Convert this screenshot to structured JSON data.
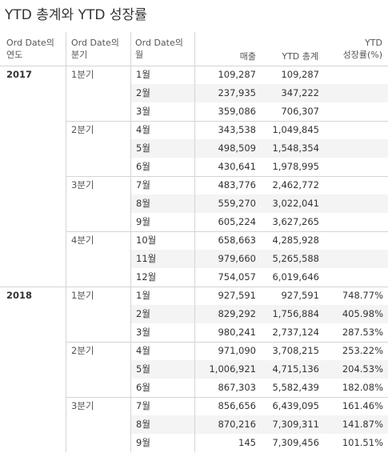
{
  "title": "YTD 총계와 YTD 성장률",
  "headers": {
    "year": [
      "Ord Date의",
      "연도"
    ],
    "quarter": [
      "Ord Date의",
      "분기"
    ],
    "month": [
      "Ord Date의",
      "월"
    ],
    "sales": "매출",
    "ytd_total": "YTD 총계",
    "ytd_growth": [
      "YTD",
      "성장률(%)"
    ]
  },
  "years": [
    {
      "year": "2017",
      "quarters": [
        {
          "label": "1분기",
          "rows": [
            {
              "month": "1월",
              "sales": "109,287",
              "ytd": "109,287",
              "growth": ""
            },
            {
              "month": "2월",
              "sales": "237,935",
              "ytd": "347,222",
              "growth": ""
            },
            {
              "month": "3월",
              "sales": "359,086",
              "ytd": "706,307",
              "growth": ""
            }
          ]
        },
        {
          "label": "2분기",
          "rows": [
            {
              "month": "4월",
              "sales": "343,538",
              "ytd": "1,049,845",
              "growth": ""
            },
            {
              "month": "5월",
              "sales": "498,509",
              "ytd": "1,548,354",
              "growth": ""
            },
            {
              "month": "6월",
              "sales": "430,641",
              "ytd": "1,978,995",
              "growth": ""
            }
          ]
        },
        {
          "label": "3분기",
          "rows": [
            {
              "month": "7월",
              "sales": "483,776",
              "ytd": "2,462,772",
              "growth": ""
            },
            {
              "month": "8월",
              "sales": "559,270",
              "ytd": "3,022,041",
              "growth": ""
            },
            {
              "month": "9월",
              "sales": "605,224",
              "ytd": "3,627,265",
              "growth": ""
            }
          ]
        },
        {
          "label": "4분기",
          "rows": [
            {
              "month": "10월",
              "sales": "658,663",
              "ytd": "4,285,928",
              "growth": ""
            },
            {
              "month": "11월",
              "sales": "979,660",
              "ytd": "5,265,588",
              "growth": ""
            },
            {
              "month": "12월",
              "sales": "754,057",
              "ytd": "6,019,646",
              "growth": ""
            }
          ]
        }
      ]
    },
    {
      "year": "2018",
      "quarters": [
        {
          "label": "1분기",
          "rows": [
            {
              "month": "1월",
              "sales": "927,591",
              "ytd": "927,591",
              "growth": "748.77%"
            },
            {
              "month": "2월",
              "sales": "829,292",
              "ytd": "1,756,884",
              "growth": "405.98%"
            },
            {
              "month": "3월",
              "sales": "980,241",
              "ytd": "2,737,124",
              "growth": "287.53%"
            }
          ]
        },
        {
          "label": "2분기",
          "rows": [
            {
              "month": "4월",
              "sales": "971,090",
              "ytd": "3,708,215",
              "growth": "253.22%"
            },
            {
              "month": "5월",
              "sales": "1,006,921",
              "ytd": "4,715,136",
              "growth": "204.53%"
            },
            {
              "month": "6월",
              "sales": "867,303",
              "ytd": "5,582,439",
              "growth": "182.08%"
            }
          ]
        },
        {
          "label": "3분기",
          "rows": [
            {
              "month": "7월",
              "sales": "856,656",
              "ytd": "6,439,095",
              "growth": "161.46%"
            },
            {
              "month": "8월",
              "sales": "870,216",
              "ytd": "7,309,311",
              "growth": "141.87%"
            },
            {
              "month": "9월",
              "sales": "145",
              "ytd": "7,309,456",
              "growth": "101.51%"
            }
          ]
        }
      ]
    }
  ]
}
